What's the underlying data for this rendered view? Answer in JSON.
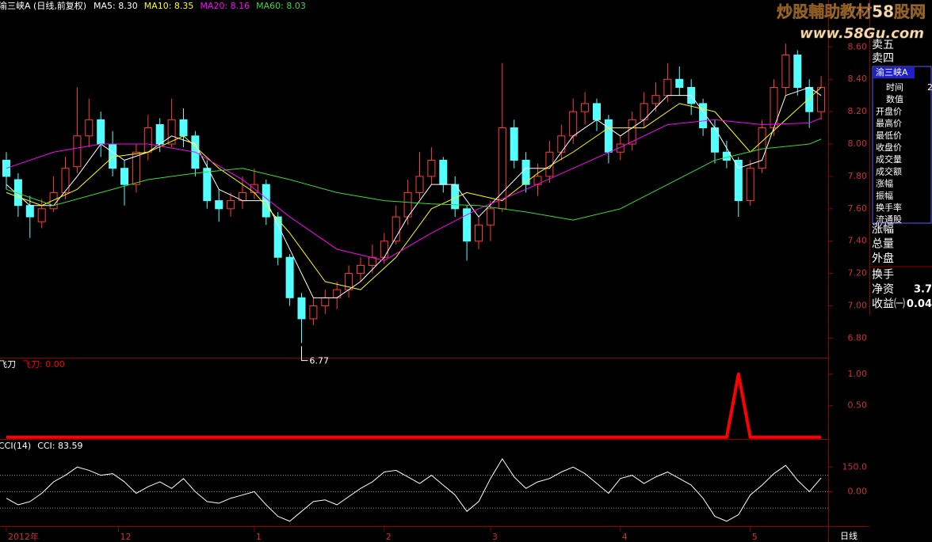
{
  "header": {
    "title": "渝三峡A (日线,前复权)"
  },
  "watermark": {
    "title": "炒股輔助教材58股网",
    "url": "www.58Gu.com"
  },
  "side_panel": {
    "top": [
      "卖五",
      "卖四"
    ],
    "box_title": "渝三峡A",
    "box_value": "2",
    "box_rows": [
      "时间",
      "数值",
      "开盘价",
      "最高价",
      "最低价",
      "收盘价",
      "成交量",
      "成交额",
      "涨幅",
      "振幅",
      "换手率",
      "流通股"
    ],
    "rows": [
      {
        "label": "涨幅"
      },
      {
        "label": "总量"
      },
      {
        "label": "外盘"
      },
      {
        "label": "换手"
      },
      {
        "label": "净资",
        "value": "3.7"
      },
      {
        "label": "收益㈠",
        "value": "0.04"
      }
    ]
  },
  "period_label": "日线",
  "chart_data": [
    {
      "type": "candlestick",
      "up_color": "#ff3c3c",
      "down_color": "#54ffff",
      "ylim": [
        6.68,
        8.89
      ],
      "yticks": [
        {
          "value": 6.8,
          "label": "6.80"
        },
        {
          "value": 7.0,
          "label": "7.00"
        },
        {
          "value": 7.2,
          "label": "7.20"
        },
        {
          "value": 7.4,
          "label": "7.40"
        },
        {
          "value": 7.6,
          "label": "7.60"
        },
        {
          "value": 7.8,
          "label": "7.80"
        },
        {
          "value": 8.0,
          "label": "8.00"
        },
        {
          "value": 8.2,
          "label": "8.20"
        },
        {
          "value": 8.4,
          "label": "8.40"
        },
        {
          "value": 8.6,
          "label": "8.60"
        }
      ],
      "candles": [
        [
          7.9,
          7.95,
          7.72,
          7.8
        ],
        [
          7.78,
          7.82,
          7.55,
          7.62
        ],
        [
          7.62,
          7.68,
          7.42,
          7.55
        ],
        [
          7.52,
          7.66,
          7.48,
          7.6
        ],
        [
          7.6,
          7.8,
          7.58,
          7.7
        ],
        [
          7.7,
          7.92,
          7.66,
          7.85
        ],
        [
          7.86,
          8.35,
          7.82,
          8.05
        ],
        [
          8.05,
          8.28,
          7.98,
          8.15
        ],
        [
          8.15,
          8.2,
          7.92,
          8.0
        ],
        [
          8.0,
          8.08,
          7.8,
          7.85
        ],
        [
          7.85,
          7.9,
          7.62,
          7.75
        ],
        [
          7.75,
          8.0,
          7.7,
          7.95
        ],
        [
          7.95,
          8.18,
          7.9,
          8.1
        ],
        [
          8.12,
          8.16,
          7.95,
          8.0
        ],
        [
          8.0,
          8.28,
          7.98,
          8.15
        ],
        [
          8.15,
          8.22,
          7.98,
          8.05
        ],
        [
          8.05,
          8.08,
          7.8,
          7.85
        ],
        [
          7.85,
          7.9,
          7.6,
          7.65
        ],
        [
          7.65,
          7.72,
          7.52,
          7.6
        ],
        [
          7.6,
          7.7,
          7.55,
          7.65
        ],
        [
          7.65,
          7.8,
          7.6,
          7.7
        ],
        [
          7.7,
          7.85,
          7.66,
          7.75
        ],
        [
          7.75,
          7.78,
          7.5,
          7.55
        ],
        [
          7.55,
          7.58,
          7.25,
          7.3
        ],
        [
          7.3,
          7.32,
          7.0,
          7.05
        ],
        [
          7.05,
          7.08,
          6.77,
          6.92
        ],
        [
          6.92,
          7.05,
          6.88,
          7.0
        ],
        [
          7.0,
          7.1,
          6.95,
          7.05
        ],
        [
          7.05,
          7.15,
          6.98,
          7.1
        ],
        [
          7.1,
          7.25,
          7.05,
          7.2
        ],
        [
          7.2,
          7.3,
          7.15,
          7.25
        ],
        [
          7.25,
          7.38,
          7.2,
          7.3
        ],
        [
          7.3,
          7.45,
          7.26,
          7.4
        ],
        [
          7.4,
          7.62,
          7.38,
          7.55
        ],
        [
          7.55,
          7.78,
          7.5,
          7.7
        ],
        [
          7.7,
          7.95,
          7.66,
          7.8
        ],
        [
          7.8,
          7.98,
          7.75,
          7.9
        ],
        [
          7.9,
          7.92,
          7.7,
          7.75
        ],
        [
          7.75,
          7.8,
          7.55,
          7.6
        ],
        [
          7.6,
          7.62,
          7.28,
          7.4
        ],
        [
          7.4,
          7.55,
          7.35,
          7.5
        ],
        [
          7.5,
          7.65,
          7.4,
          7.6
        ],
        [
          7.6,
          8.5,
          7.58,
          8.1
        ],
        [
          8.1,
          8.15,
          7.85,
          7.9
        ],
        [
          7.9,
          7.95,
          7.7,
          7.75
        ],
        [
          7.75,
          7.88,
          7.68,
          7.8
        ],
        [
          7.8,
          8.02,
          7.76,
          7.95
        ],
        [
          7.95,
          8.12,
          7.9,
          8.05
        ],
        [
          8.05,
          8.28,
          8.0,
          8.2
        ],
        [
          8.2,
          8.32,
          8.12,
          8.25
        ],
        [
          8.25,
          8.28,
          8.08,
          8.15
        ],
        [
          8.15,
          8.18,
          7.88,
          7.95
        ],
        [
          7.95,
          8.05,
          7.9,
          8.0
        ],
        [
          8.0,
          8.2,
          7.96,
          8.15
        ],
        [
          8.15,
          8.32,
          8.1,
          8.25
        ],
        [
          8.25,
          8.38,
          8.2,
          8.3
        ],
        [
          8.3,
          8.5,
          8.26,
          8.4
        ],
        [
          8.4,
          8.48,
          8.3,
          8.35
        ],
        [
          8.35,
          8.4,
          8.18,
          8.25
        ],
        [
          8.25,
          8.28,
          8.05,
          8.1
        ],
        [
          8.1,
          8.15,
          7.88,
          7.95
        ],
        [
          7.95,
          8.02,
          7.85,
          7.9
        ],
        [
          7.9,
          7.92,
          7.55,
          7.65
        ],
        [
          7.65,
          7.9,
          7.62,
          7.85
        ],
        [
          7.85,
          8.15,
          7.82,
          8.1
        ],
        [
          8.1,
          8.4,
          8.05,
          8.35
        ],
        [
          8.35,
          8.62,
          8.3,
          8.55
        ],
        [
          8.55,
          8.58,
          8.3,
          8.35
        ],
        [
          8.35,
          8.4,
          8.1,
          8.2
        ],
        [
          8.2,
          8.42,
          8.15,
          8.35
        ]
      ],
      "low_mark_index": 25,
      "series": [
        {
          "name": "MA5",
          "label": "MA5: 8.30",
          "color": "#ffffff",
          "x": [
            0,
            2,
            4,
            6,
            8,
            10,
            12,
            14,
            16,
            18,
            20,
            22,
            24,
            26,
            28,
            30,
            32,
            34,
            36,
            38,
            40,
            42,
            44,
            46,
            48,
            50,
            52,
            54,
            56,
            58,
            60,
            62,
            64,
            66,
            68,
            69
          ],
          "values": [
            7.75,
            7.62,
            7.62,
            7.8,
            8.0,
            7.9,
            7.95,
            8.05,
            8.0,
            7.72,
            7.65,
            7.65,
            7.35,
            7.05,
            7.05,
            7.15,
            7.3,
            7.55,
            7.75,
            7.75,
            7.55,
            7.7,
            7.85,
            7.85,
            8.05,
            8.15,
            8.05,
            8.15,
            8.3,
            8.3,
            8.1,
            7.85,
            7.9,
            8.3,
            8.35,
            8.3
          ]
        },
        {
          "name": "MA10",
          "label": "MA10: 8.35",
          "color": "#ffff00",
          "x": [
            0,
            3,
            6,
            9,
            12,
            15,
            18,
            21,
            24,
            27,
            30,
            33,
            36,
            39,
            42,
            45,
            48,
            51,
            54,
            57,
            60,
            63,
            66,
            69
          ],
          "values": [
            7.7,
            7.62,
            7.72,
            7.92,
            7.95,
            8.05,
            7.85,
            7.7,
            7.45,
            7.15,
            7.1,
            7.3,
            7.6,
            7.7,
            7.65,
            7.82,
            7.95,
            8.1,
            8.1,
            8.25,
            8.2,
            7.95,
            8.15,
            8.35
          ]
        },
        {
          "name": "MA20",
          "label": "MA20: 8.16",
          "color": "#ff00ff",
          "x": [
            0,
            4,
            8,
            12,
            16,
            20,
            24,
            28,
            32,
            36,
            40,
            44,
            48,
            52,
            56,
            60,
            64,
            68,
            69
          ],
          "values": [
            7.85,
            7.95,
            8.0,
            8.0,
            7.95,
            7.78,
            7.55,
            7.35,
            7.28,
            7.45,
            7.6,
            7.72,
            7.85,
            7.98,
            8.12,
            8.15,
            8.12,
            8.13,
            8.16
          ]
        },
        {
          "name": "MA60",
          "label": "MA60: 8.03",
          "color": "#33dd33",
          "x": [
            0,
            4,
            8,
            12,
            16,
            20,
            24,
            28,
            32,
            36,
            40,
            44,
            48,
            52,
            56,
            60,
            64,
            68,
            69
          ],
          "values": [
            7.72,
            7.62,
            7.7,
            7.78,
            7.82,
            7.85,
            7.78,
            7.7,
            7.65,
            7.63,
            7.62,
            7.58,
            7.53,
            7.6,
            7.75,
            7.9,
            7.97,
            8.0,
            8.03
          ]
        }
      ]
    },
    {
      "type": "line",
      "title": "飞刀",
      "ylim": [
        -0.03,
        1.26
      ],
      "yticks": [
        {
          "value": 0.5,
          "label": "0.50"
        },
        {
          "value": 1.0,
          "label": "1.00"
        }
      ],
      "series": [
        {
          "name": "飞刀",
          "current_label": "飞刀: 0.00",
          "color": "#ff0000",
          "width": 4,
          "values": [
            0,
            0,
            0,
            0,
            0,
            0,
            0,
            0,
            0,
            0,
            0,
            0,
            0,
            0,
            0,
            0,
            0,
            0,
            0,
            0,
            0,
            0,
            0,
            0,
            0,
            0,
            0,
            0,
            0,
            0,
            0,
            0,
            0,
            0,
            0,
            0,
            0,
            0,
            0,
            0,
            0,
            0,
            0,
            0,
            0,
            0,
            0,
            0,
            0,
            0,
            0,
            0,
            0,
            0,
            0,
            0,
            0,
            0,
            0,
            0,
            0,
            0,
            1,
            0,
            0,
            0,
            0,
            0,
            0,
            0
          ]
        }
      ]
    },
    {
      "type": "line",
      "title": "CCI(14)",
      "ylim": [
        -210,
        320
      ],
      "yticks": [
        {
          "value": 0,
          "label": "0.00"
        },
        {
          "value": 150,
          "label": "150.0"
        }
      ],
      "levels": [
        100,
        0,
        -100
      ],
      "series": [
        {
          "name": "CCI",
          "current_label": "CCI: 83.59",
          "color": "#ffffff",
          "width": 1,
          "values": [
            -40,
            -80,
            -60,
            -10,
            60,
            100,
            150,
            130,
            100,
            110,
            60,
            -10,
            30,
            60,
            20,
            80,
            0,
            -60,
            -70,
            -40,
            -20,
            0,
            -80,
            -150,
            -180,
            -120,
            -60,
            -50,
            -80,
            -30,
            20,
            60,
            120,
            130,
            90,
            50,
            100,
            40,
            -20,
            -120,
            -60,
            80,
            200,
            90,
            20,
            60,
            80,
            120,
            150,
            110,
            50,
            -10,
            80,
            100,
            50,
            90,
            120,
            80,
            40,
            -40,
            -150,
            -180,
            -140,
            -20,
            40,
            110,
            160,
            70,
            0,
            83.59
          ]
        }
      ],
      "x_labels": {
        "x": [
          0,
          9.5,
          21,
          32,
          41,
          52,
          63
        ],
        "labels": [
          "2012年",
          "12",
          "1",
          "2",
          "3",
          "4",
          "5"
        ]
      }
    }
  ]
}
